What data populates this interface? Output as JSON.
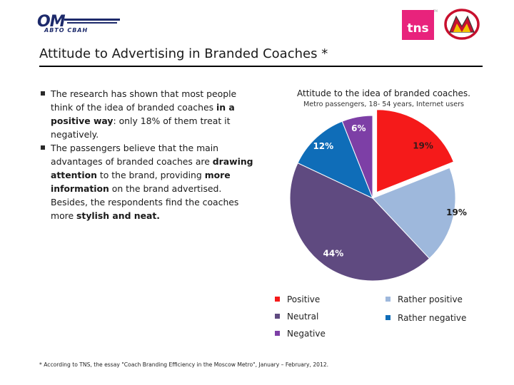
{
  "logos": {
    "left_main": "OM",
    "left_sub": "ABTO CBAH",
    "tns_text": "tns",
    "tns_tm": "TM",
    "metro_letter": "M"
  },
  "title": "Attitude to Advertising in Branded Coaches *",
  "bullets": [
    {
      "parts": [
        {
          "text": "The research has shown that most people think of the idea of branded coaches ",
          "bold": false
        },
        {
          "text": "in a positive way",
          "bold": true
        },
        {
          "text": ": only 18% of them treat it negatively.",
          "bold": false
        }
      ]
    },
    {
      "parts": [
        {
          "text": "The passengers believe that the main advantages of branded coaches are ",
          "bold": false
        },
        {
          "text": "drawing attention",
          "bold": true
        },
        {
          "text": " to the brand, providing ",
          "bold": false
        },
        {
          "text": "more information",
          "bold": true
        },
        {
          "text": " on the brand advertised. Besides, the respondents find the coaches more ",
          "bold": false
        },
        {
          "text": "stylish and neat.",
          "bold": true
        }
      ]
    }
  ],
  "chart_data": {
    "type": "pie",
    "title": "Attitude to the idea of branded coaches.",
    "subtitle": "Metro passengers, 18- 54 years, Internet users",
    "slices": [
      {
        "name": "Positive",
        "value": 19,
        "label": "19%",
        "color": "#f51a1a",
        "exploded": true
      },
      {
        "name": "Rather positive",
        "value": 19,
        "label": "19%",
        "color": "#9eb8dc",
        "exploded": false
      },
      {
        "name": "Neutral",
        "value": 44,
        "label": "44%",
        "color": "#5f4a80",
        "exploded": false
      },
      {
        "name": "Rather negative",
        "value": 12,
        "label": "12%",
        "color": "#0f6db8",
        "exploded": false
      },
      {
        "name": "Negative",
        "value": 6,
        "label": "6%",
        "color": "#7d3fa6",
        "exploded": false
      }
    ],
    "label_color": "#ffffff",
    "label_color_light_slices": "#1a1a1a",
    "legend_position": "bottom"
  },
  "legend": [
    {
      "label": "Positive",
      "color": "#f51a1a"
    },
    {
      "label": "Rather positive",
      "color": "#9eb8dc"
    },
    {
      "label": "Neutral",
      "color": "#5f4a80"
    },
    {
      "label": "Rather negative",
      "color": "#0f6db8"
    },
    {
      "label": "Negative",
      "color": "#7d3fa6"
    }
  ],
  "footnote": "* According to TNS, the essay \"Coach Branding Efficiency in the Moscow Metro\", January – February, 2012."
}
